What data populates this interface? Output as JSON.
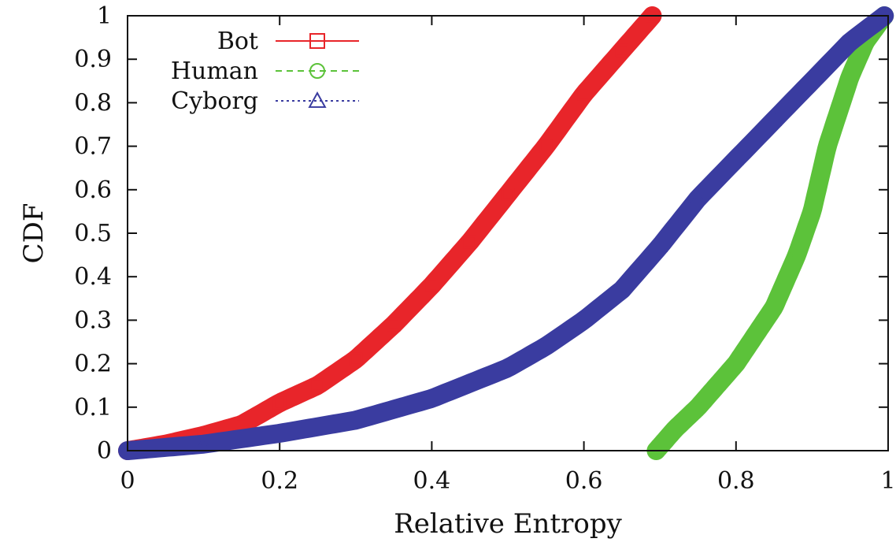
{
  "chart_data": {
    "type": "line",
    "xlabel": "Relative Entropy",
    "ylabel": "CDF",
    "xlim": [
      0,
      1
    ],
    "ylim": [
      0,
      1
    ],
    "x_ticks": [
      "0",
      "0.2",
      "0.4",
      "0.6",
      "0.8",
      "1"
    ],
    "y_ticks": [
      "0",
      "0.1",
      "0.2",
      "0.3",
      "0.4",
      "0.5",
      "0.6",
      "0.7",
      "0.8",
      "0.9",
      "1"
    ],
    "grid": false,
    "legend_position": "top-left",
    "series": [
      {
        "name": "Bot",
        "color": "#e8252a",
        "marker": "square",
        "line_style": "solid",
        "points": [
          [
            0.0,
            0.0
          ],
          [
            0.05,
            0.015
          ],
          [
            0.1,
            0.035
          ],
          [
            0.15,
            0.06
          ],
          [
            0.2,
            0.11
          ],
          [
            0.25,
            0.15
          ],
          [
            0.3,
            0.21
          ],
          [
            0.35,
            0.29
          ],
          [
            0.4,
            0.38
          ],
          [
            0.45,
            0.48
          ],
          [
            0.5,
            0.59
          ],
          [
            0.55,
            0.7
          ],
          [
            0.6,
            0.82
          ],
          [
            0.65,
            0.92
          ],
          [
            0.69,
            1.0
          ]
        ]
      },
      {
        "name": "Human",
        "color": "#5cc23a",
        "marker": "circle",
        "line_style": "dashed",
        "points": [
          [
            0.695,
            0.0
          ],
          [
            0.72,
            0.05
          ],
          [
            0.75,
            0.1
          ],
          [
            0.8,
            0.2
          ],
          [
            0.85,
            0.33
          ],
          [
            0.88,
            0.45
          ],
          [
            0.9,
            0.55
          ],
          [
            0.92,
            0.7
          ],
          [
            0.95,
            0.86
          ],
          [
            0.97,
            0.94
          ],
          [
            0.995,
            1.0
          ]
        ]
      },
      {
        "name": "Cyborg",
        "color": "#3a3ca0",
        "marker": "triangle",
        "line_style": "dotted",
        "points": [
          [
            0.0,
            0.0
          ],
          [
            0.1,
            0.015
          ],
          [
            0.2,
            0.04
          ],
          [
            0.3,
            0.07
          ],
          [
            0.4,
            0.12
          ],
          [
            0.5,
            0.19
          ],
          [
            0.55,
            0.24
          ],
          [
            0.6,
            0.3
          ],
          [
            0.65,
            0.37
          ],
          [
            0.7,
            0.47
          ],
          [
            0.75,
            0.58
          ],
          [
            0.8,
            0.67
          ],
          [
            0.85,
            0.76
          ],
          [
            0.9,
            0.85
          ],
          [
            0.95,
            0.94
          ],
          [
            0.995,
            1.0
          ]
        ]
      }
    ]
  }
}
